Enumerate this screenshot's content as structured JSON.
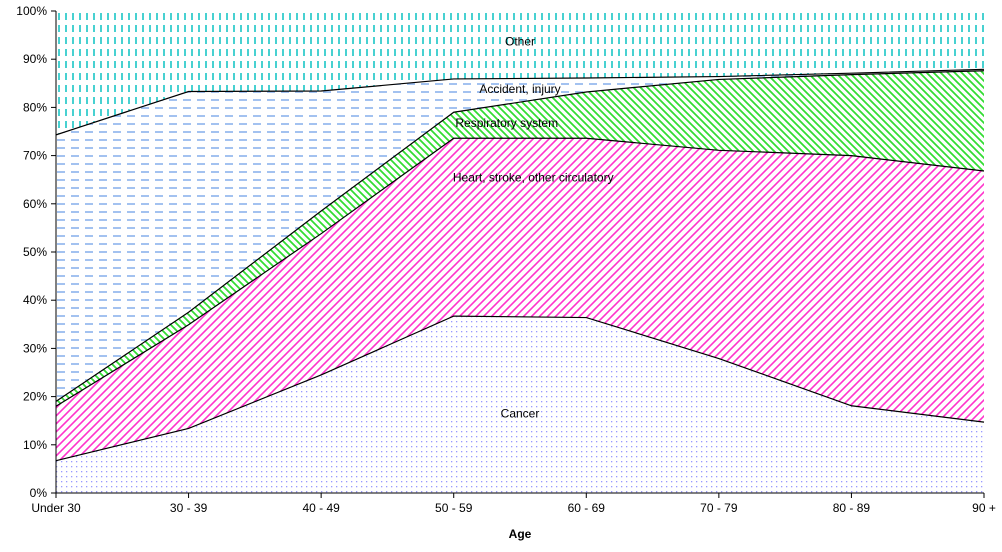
{
  "chart_data": {
    "type": "area",
    "stacked": true,
    "xlabel": "Age",
    "ylabel": "",
    "ylim": [
      0,
      100
    ],
    "y_ticks": [
      "0%",
      "10%",
      "20%",
      "30%",
      "40%",
      "50%",
      "60%",
      "70%",
      "80%",
      "90%",
      "100%"
    ],
    "categories": [
      "Under 30",
      "30 - 39",
      "40 - 49",
      "50 - 59",
      "60 - 69",
      "70 - 79",
      "80 - 89",
      "90 +"
    ],
    "series": [
      {
        "name": "Cancer",
        "values": [
          6.7,
          13.4,
          24.5,
          36.7,
          36.4,
          27.9,
          18.1,
          14.7
        ],
        "color": "#9999ff",
        "pattern": "dots"
      },
      {
        "name": "Heart, stroke, other circulatory",
        "values": [
          11.3,
          21.5,
          29.3,
          36.9,
          37.2,
          43.2,
          51.9,
          52.1
        ],
        "color": "#ff33cc",
        "pattern": "diagonal"
      },
      {
        "name": "Respiratory system",
        "values": [
          1.0,
          2.6,
          4.7,
          5.4,
          9.6,
          14.7,
          16.8,
          20.8
        ],
        "color": "#33dd33",
        "pattern": "diagonal-reverse"
      },
      {
        "name": "Accident, injury",
        "values": [
          55.3,
          45.8,
          24.9,
          6.9,
          2.9,
          0.6,
          0.3,
          0.3
        ],
        "color": "#99bbee",
        "pattern": "dashes"
      },
      {
        "name": "Other",
        "values": [
          25.7,
          16.7,
          16.6,
          14.1,
          13.9,
          13.6,
          12.9,
          12.1
        ],
        "color": "#33cccc",
        "pattern": "vertical-dashes"
      }
    ]
  }
}
